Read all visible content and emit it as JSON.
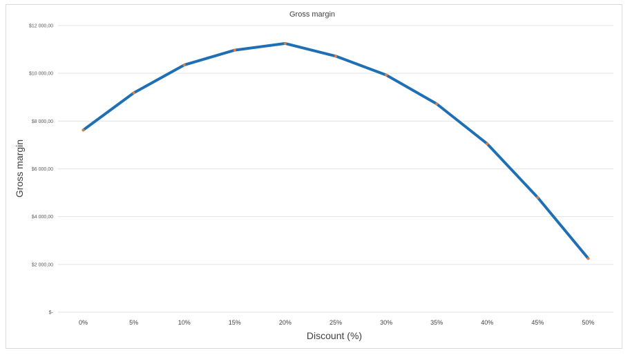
{
  "chart_data": {
    "type": "line",
    "title": "Gross margin",
    "xlabel": "Discount (%)",
    "ylabel": "Gross margin",
    "categories": [
      "0%",
      "5%",
      "10%",
      "15%",
      "20%",
      "25%",
      "30%",
      "35%",
      "40%",
      "45%",
      "50%"
    ],
    "series": [
      {
        "values": [
          7625,
          9180,
          10350,
          10970,
          11250,
          10720,
          9930,
          8720,
          7050,
          4800,
          2250
        ],
        "line_color": "#1f6fb5",
        "marker_color": "#e07b39"
      }
    ],
    "y_ticks": [
      0,
      2000,
      4000,
      6000,
      8000,
      10000,
      12000
    ],
    "y_tick_labels": [
      "$-",
      "$2 000,00",
      "$4 000,00",
      "$6 000,00",
      "$8 000,00",
      "$10 000,00",
      "$12 000,00"
    ],
    "ylim": [
      0,
      12000
    ],
    "grid": true,
    "legend": "none"
  }
}
